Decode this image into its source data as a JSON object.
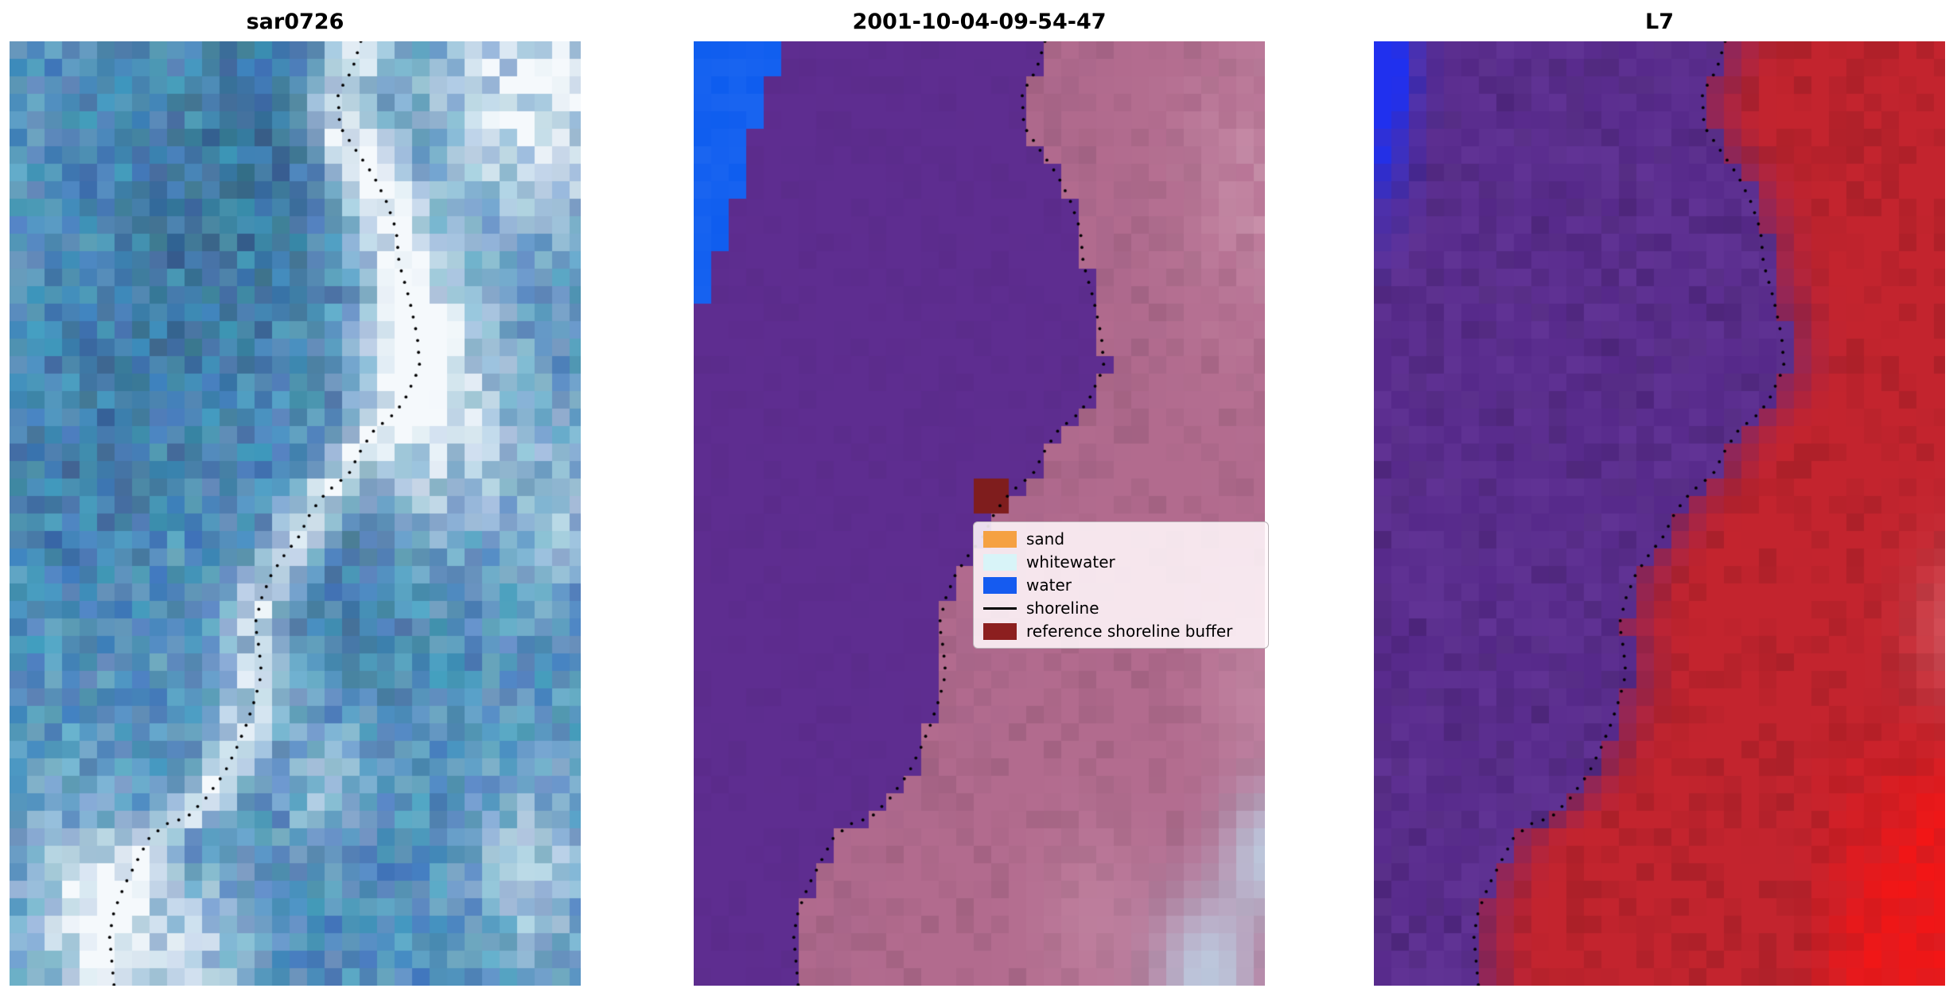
{
  "figure": {
    "background": "#ffffff"
  },
  "panels": [
    {
      "title": "sar0726",
      "kind": "sar"
    },
    {
      "title": "2001-10-04-09-54-47",
      "kind": "classified"
    },
    {
      "title": "L7",
      "kind": "l7"
    }
  ],
  "legend": {
    "items": [
      {
        "label": "sand",
        "swatch": "patch",
        "color": "#f5a142"
      },
      {
        "label": "whitewater",
        "swatch": "patch",
        "color": "#d8f4f8"
      },
      {
        "label": "water",
        "swatch": "patch",
        "color": "#155bf0"
      },
      {
        "label": "shoreline",
        "swatch": "line",
        "color": "#000000"
      },
      {
        "label": "reference shoreline buffer",
        "swatch": "patch",
        "color": "#8c1f1f"
      }
    ]
  },
  "palette": {
    "white_highlight": "#f5f9fc",
    "class_water_blue": "#0a5aef",
    "class_purple": "#5e2d90",
    "class_pink": "#b26b8e",
    "class_pale_blue": "#bdd0e4",
    "class_light_pink": "#cf9ab2",
    "buffer_dark_red": "#7f1d1d",
    "l7_purple": "#56298a",
    "l7_red": "#c3242e",
    "l7_bright_red": "#f21616",
    "l7_corner_blue": "#2030ee",
    "l7_light_red": "#e0737c",
    "shoreline_dot": "#000000"
  },
  "shoreline": {
    "points": [
      [
        0.615,
        0.0
      ],
      [
        0.6,
        0.03
      ],
      [
        0.575,
        0.055
      ],
      [
        0.578,
        0.09
      ],
      [
        0.606,
        0.115
      ],
      [
        0.637,
        0.142
      ],
      [
        0.66,
        0.17
      ],
      [
        0.677,
        0.2
      ],
      [
        0.682,
        0.235
      ],
      [
        0.7,
        0.273
      ],
      [
        0.714,
        0.313
      ],
      [
        0.718,
        0.345
      ],
      [
        0.693,
        0.378
      ],
      [
        0.676,
        0.393
      ],
      [
        0.638,
        0.412
      ],
      [
        0.616,
        0.432
      ],
      [
        0.594,
        0.458
      ],
      [
        0.554,
        0.478
      ],
      [
        0.528,
        0.498
      ],
      [
        0.507,
        0.524
      ],
      [
        0.48,
        0.545
      ],
      [
        0.458,
        0.565
      ],
      [
        0.441,
        0.59
      ],
      [
        0.43,
        0.617
      ],
      [
        0.437,
        0.643
      ],
      [
        0.441,
        0.67
      ],
      [
        0.43,
        0.696
      ],
      [
        0.415,
        0.723
      ],
      [
        0.397,
        0.749
      ],
      [
        0.376,
        0.775
      ],
      [
        0.343,
        0.802
      ],
      [
        0.31,
        0.822
      ],
      [
        0.277,
        0.828
      ],
      [
        0.245,
        0.843
      ],
      [
        0.223,
        0.868
      ],
      [
        0.201,
        0.894
      ],
      [
        0.183,
        0.921
      ],
      [
        0.175,
        0.947
      ],
      [
        0.179,
        0.974
      ],
      [
        0.183,
        1.0
      ]
    ]
  },
  "chart_data": {
    "type": "heatmap",
    "title": "",
    "panels": [
      {
        "title": "sar0726",
        "content": "SAR satellite image in blue tones with a bright white band along the coast and a dotted black detected shoreline"
      },
      {
        "title": "2001-10-04-09-54-47",
        "content": "classified satellite image: solid purple classified-water region on the left, pink land on the right, bright blue water patch in the top-left corner, small dark-red reference shoreline buffer patch near the shoreline, dotted black shoreline, legend overlay"
      },
      {
        "title": "L7",
        "content": "Landsat 7 false-colour image: purple water region on the left, red land on the right, bright blue patch in the top-left corner, bright red in the bottom-right corner, dotted black shoreline"
      }
    ],
    "legend_entries": [
      "sand",
      "whitewater",
      "water",
      "shoreline",
      "reference shoreline buffer"
    ]
  }
}
